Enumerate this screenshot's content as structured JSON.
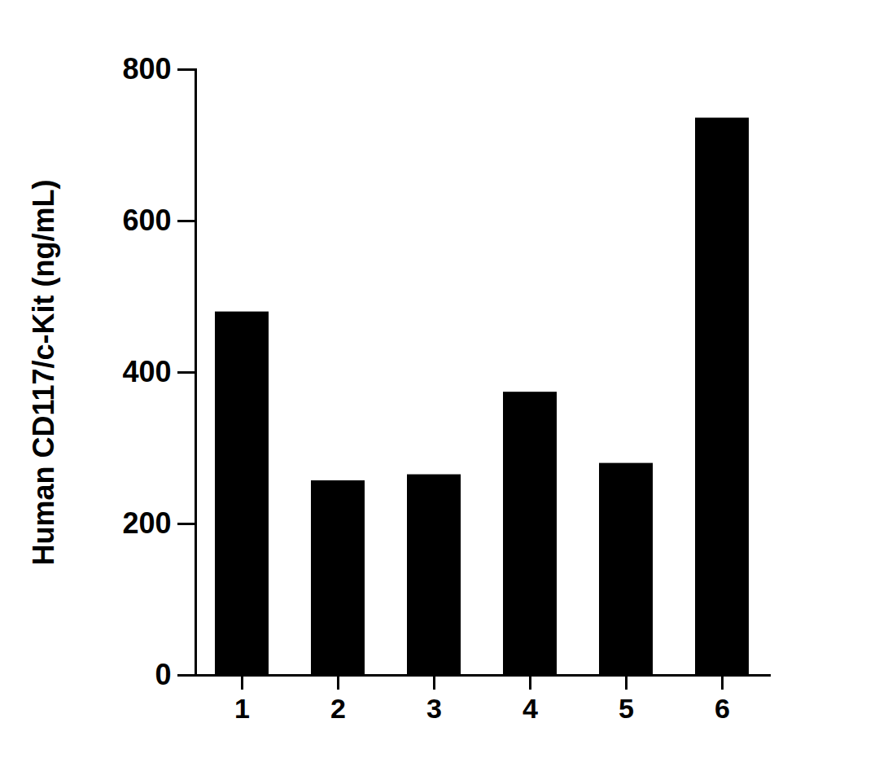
{
  "chart_data": {
    "type": "bar",
    "y_label": "Human CD117/c-Kit (ng/mL)",
    "categories": [
      "1",
      "2",
      "3",
      "4",
      "5",
      "6"
    ],
    "values": [
      480,
      257,
      265,
      374,
      280,
      736
    ],
    "color": "#000000",
    "ylim": [
      0,
      800
    ],
    "yticks": [
      0,
      200,
      400,
      600,
      800
    ],
    "grid": false
  }
}
